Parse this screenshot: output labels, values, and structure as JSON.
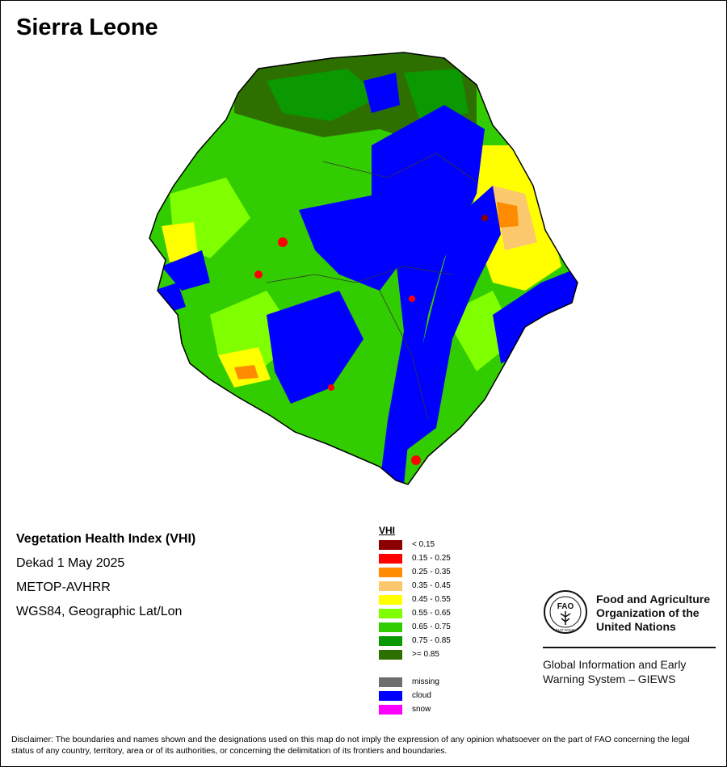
{
  "title": "Sierra Leone",
  "info": {
    "index_name": "Vegetation Health Index (VHI)",
    "period": "Dekad 1 May 2025",
    "sensor": "METOP-AVHRR",
    "projection": "WGS84, Geographic Lat/Lon"
  },
  "legend": {
    "title": "VHI",
    "classes": [
      {
        "label": "< 0.15",
        "color": "#8b0000"
      },
      {
        "label": "0.15 - 0.25",
        "color": "#ff0000"
      },
      {
        "label": "0.25 - 0.35",
        "color": "#ff8c00"
      },
      {
        "label": "0.35 - 0.45",
        "color": "#fcc86e"
      },
      {
        "label": "0.45 - 0.55",
        "color": "#ffff00"
      },
      {
        "label": "0.55 - 0.65",
        "color": "#7fff00"
      },
      {
        "label": "0.65 - 0.75",
        "color": "#32cd00"
      },
      {
        "label": "0.75 - 0.85",
        "color": "#0a9900"
      },
      {
        "label": ">= 0.85",
        "color": "#2e7000"
      }
    ],
    "special": [
      {
        "label": "missing",
        "color": "#6e6e6e"
      },
      {
        "label": "cloud",
        "color": "#0000ff"
      },
      {
        "label": "snow",
        "color": "#ff00ff"
      }
    ]
  },
  "organization": {
    "name_line1": "Food and Agriculture",
    "name_line2": "Organization of the",
    "name_line3": "United Nations",
    "logo_text_top": "FAO",
    "logo_text_bottom": "FIAT PANIS",
    "system_line1": "Global Information and Early",
    "system_line2": "Warning System – GIEWS"
  },
  "disclaimer": "Disclaimer: The boundaries and names shown and the designations used on this map do not imply the expression of any opinion whatsoever on the part of FAO concerning the legal status of any country, territory, area or of its authorities, or concerning the delimitation of its frontiers and boundaries."
}
